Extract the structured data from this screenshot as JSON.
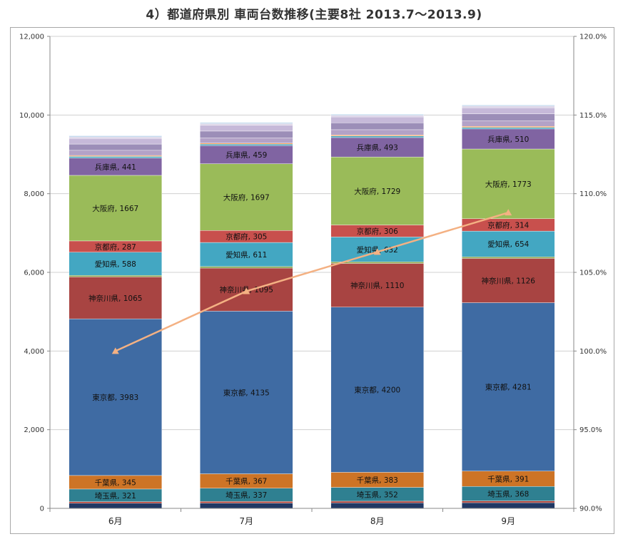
{
  "title": "4）都道府県別 車両台数推移(主要8社 2013.7～2013.9)",
  "chart_data": {
    "type": "bar",
    "stacked": true,
    "categories": [
      "6月",
      "7月",
      "8月",
      "9月"
    ],
    "y_left": {
      "lim": [
        0,
        12000
      ],
      "ticks": [
        "0",
        "2,000",
        "4,000",
        "6,000",
        "8,000",
        "10,000",
        "12,000"
      ]
    },
    "y_right": {
      "lim": [
        90,
        120
      ],
      "ticks": [
        "90.0%",
        "95.0%",
        "100.0%",
        "105.0%",
        "110.0%",
        "115.0%",
        "120.0%"
      ]
    },
    "series": [
      {
        "name": "",
        "color": "#203864",
        "values": [
          130,
          135,
          140,
          145
        ],
        "labeled": false
      },
      {
        "name": "",
        "color": "#b03a2e",
        "values": [
          40,
          40,
          42,
          44
        ],
        "labeled": false
      },
      {
        "name": "埼玉県",
        "color": "#2f8091",
        "values": [
          321,
          337,
          352,
          368
        ],
        "labeled": true
      },
      {
        "name": "千葉県",
        "color": "#cd7426",
        "values": [
          345,
          367,
          383,
          391
        ],
        "labeled": true
      },
      {
        "name": "東京都",
        "color": "#3f6ba3",
        "values": [
          3983,
          4135,
          4200,
          4281
        ],
        "labeled": true
      },
      {
        "name": "神奈川県",
        "color": "#a84442",
        "values": [
          1065,
          1095,
          1110,
          1126
        ],
        "labeled": true
      },
      {
        "name": "",
        "color": "#8da650",
        "values": [
          40,
          40,
          40,
          40
        ],
        "labeled": false
      },
      {
        "name": "愛知県",
        "color": "#43a7c2",
        "values": [
          588,
          611,
          632,
          654
        ],
        "labeled": true
      },
      {
        "name": "京都府",
        "color": "#c8504d",
        "values": [
          287,
          305,
          306,
          314
        ],
        "labeled": true
      },
      {
        "name": "大阪府",
        "color": "#9abb59",
        "values": [
          1667,
          1697,
          1729,
          1773
        ],
        "labeled": true
      },
      {
        "name": "兵庫県",
        "color": "#8064a2",
        "values": [
          441,
          459,
          493,
          510
        ],
        "labeled": true
      },
      {
        "name": "",
        "color": "#4aaac4",
        "values": [
          40,
          40,
          40,
          40
        ],
        "labeled": false
      },
      {
        "name": "",
        "color": "#f79646",
        "values": [
          25,
          25,
          25,
          25
        ],
        "labeled": false
      },
      {
        "name": "",
        "color": "#b3a2c7",
        "values": [
          130,
          135,
          135,
          140
        ],
        "labeled": false
      },
      {
        "name": "",
        "color": "#9c8eb8",
        "values": [
          160,
          170,
          175,
          180
        ],
        "labeled": false
      },
      {
        "name": "",
        "color": "#c6b9d9",
        "values": [
          140,
          150,
          150,
          155
        ],
        "labeled": false
      },
      {
        "name": "",
        "color": "#d9d2e6",
        "values": [
          40,
          40,
          40,
          40
        ],
        "labeled": false
      },
      {
        "name": "",
        "color": "#bfd7ec",
        "values": [
          30,
          30,
          30,
          30
        ],
        "labeled": false
      }
    ],
    "line": {
      "name": "",
      "axis": "right",
      "color": "#f4b183",
      "values": [
        100.0,
        103.8,
        106.3,
        108.8
      ]
    }
  }
}
